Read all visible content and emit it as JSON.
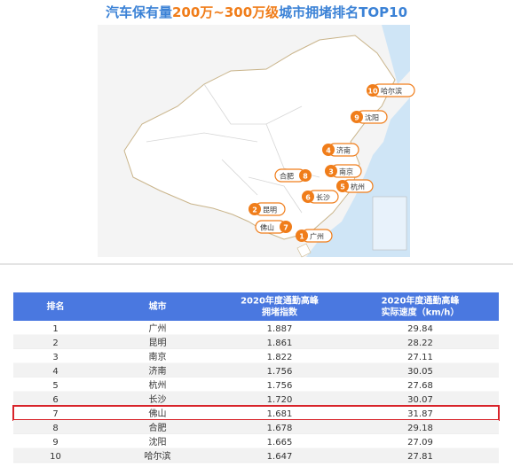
{
  "title": {
    "parts": [
      "汽车保有量",
      "200万~300万级",
      "城市拥堵排名TOP10"
    ]
  },
  "map": {
    "markers": [
      {
        "rank": "10",
        "label": "哈尔滨"
      },
      {
        "rank": "9",
        "label": "沈阳"
      },
      {
        "rank": "4",
        "label": "济南"
      },
      {
        "rank": "3",
        "label": "南京"
      },
      {
        "rank": "8",
        "label": "合肥"
      },
      {
        "rank": "5",
        "label": "杭州"
      },
      {
        "rank": "6",
        "label": "长沙"
      },
      {
        "rank": "2",
        "label": "昆明"
      },
      {
        "rank": "7",
        "label": "佛山"
      },
      {
        "rank": "1",
        "label": "广州"
      }
    ]
  },
  "table": {
    "header": [
      [
        "排名"
      ],
      [
        "城市"
      ],
      [
        "2020年度通勤高峰",
        "拥堵指数"
      ],
      [
        "2020年度通勤高峰",
        "实际速度（km/h）"
      ]
    ],
    "rows": [
      [
        "1",
        "广州",
        "1.887",
        "29.84"
      ],
      [
        "2",
        "昆明",
        "1.861",
        "28.22"
      ],
      [
        "3",
        "南京",
        "1.822",
        "27.11"
      ],
      [
        "4",
        "济南",
        "1.756",
        "30.05"
      ],
      [
        "5",
        "杭州",
        "1.756",
        "27.68"
      ],
      [
        "6",
        "长沙",
        "1.720",
        "30.07"
      ],
      [
        "7",
        "佛山",
        "1.681",
        "31.87"
      ],
      [
        "8",
        "合肥",
        "1.678",
        "29.18"
      ],
      [
        "9",
        "沈阳",
        "1.665",
        "27.09"
      ],
      [
        "10",
        "哈尔滨",
        "1.647",
        "27.81"
      ]
    ]
  }
}
